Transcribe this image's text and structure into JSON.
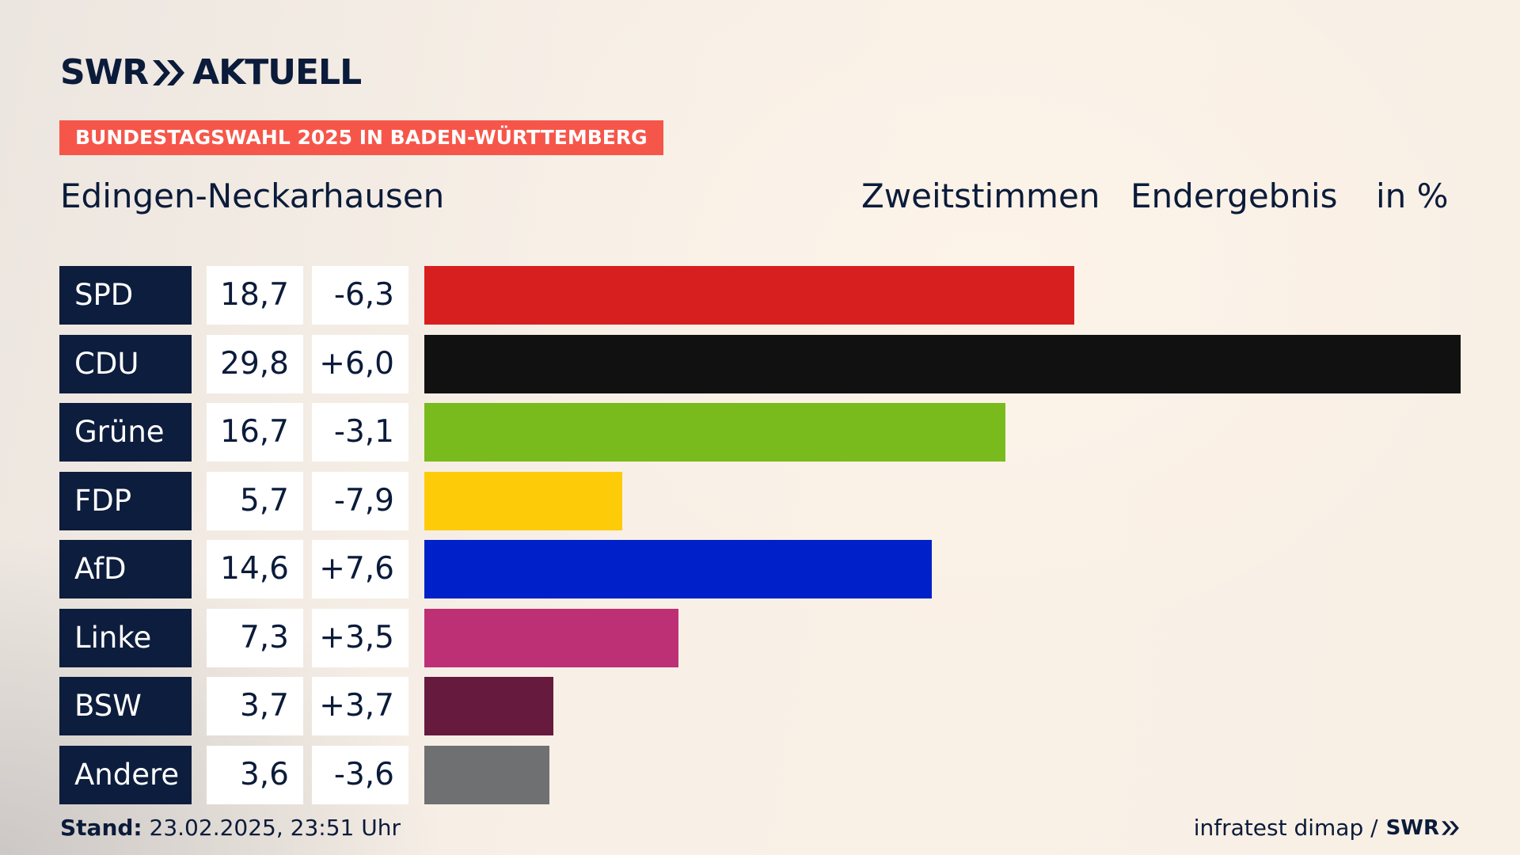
{
  "logo": {
    "brand": "SWR",
    "suffix": "AKTUELL"
  },
  "kicker": "BUNDESTAGSWAHL 2025 IN BADEN-WÜRTTEMBERG",
  "place": "Edingen-Neckarhausen",
  "headers": {
    "vote_type": "Zweitstimmen",
    "status": "Endergebnis",
    "unit": "in %"
  },
  "chart_data": {
    "type": "bar",
    "orientation": "horizontal",
    "categories": [
      "SPD",
      "CDU",
      "Grüne",
      "FDP",
      "AfD",
      "Linke",
      "BSW",
      "Andere"
    ],
    "values": [
      18.7,
      29.8,
      16.7,
      5.7,
      14.6,
      7.3,
      3.7,
      3.6
    ],
    "value_labels": [
      "18,7",
      "29,8",
      "16,7",
      "5,7",
      "14,6",
      "7,3",
      "3,7",
      "3,6"
    ],
    "diff_labels": [
      "-6,3",
      "+6,0",
      "-3,1",
      "-7,9",
      "+7,6",
      "+3,5",
      "+3,7",
      "-3,6"
    ],
    "colors": [
      "#d81f20",
      "#111111",
      "#79bb1c",
      "#fecb08",
      "#0021c9",
      "#bd3076",
      "#661a3d",
      "#6f7072"
    ],
    "xlim": [
      0,
      29.8
    ],
    "grid": false,
    "legend": "none"
  },
  "footer": {
    "stand_label": "Stand:",
    "stand_value": "23.02.2025, 23:51 Uhr",
    "source": "infratest dimap /",
    "source_brand": "SWR"
  },
  "colors": {
    "navy": "#0d1d3d",
    "kicker": "#f6564a"
  }
}
